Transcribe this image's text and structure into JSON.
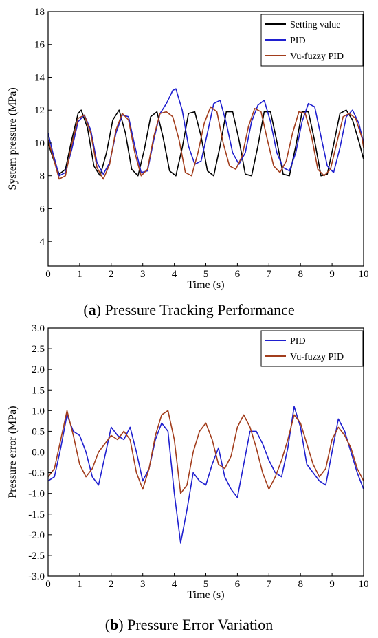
{
  "chart_data": [
    {
      "type": "line",
      "caption_letter": "a",
      "caption_text": ") Pressure Tracking Performance",
      "caption_open": "(",
      "xlabel": "Time (s)",
      "ylabel": "System pressure (MPa)",
      "xlim": [
        0,
        10
      ],
      "ylim": [
        2.5,
        18
      ],
      "xticks": [
        "0",
        "1",
        "2",
        "3",
        "4",
        "5",
        "6",
        "7",
        "8",
        "9",
        "10"
      ],
      "yticks": [
        "4",
        "6",
        "8",
        "10",
        "12",
        "14",
        "16",
        "18"
      ],
      "legend_position": "top-right",
      "grid": false,
      "series": [
        {
          "name": "Setting value",
          "color": "#000000",
          "x": [
            0,
            0.15,
            0.35,
            0.55,
            0.75,
            0.95,
            1.05,
            1.25,
            1.45,
            1.65,
            1.85,
            2.05,
            2.25,
            2.45,
            2.65,
            2.85,
            3.05,
            3.25,
            3.45,
            3.65,
            3.85,
            4.05,
            4.25,
            4.45,
            4.65,
            4.85,
            5.05,
            5.25,
            5.45,
            5.65,
            5.85,
            6.05,
            6.25,
            6.45,
            6.65,
            6.85,
            7.05,
            7.25,
            7.45,
            7.65,
            7.85,
            8.05,
            8.25,
            8.45,
            8.65,
            8.85,
            9.05,
            9.25,
            9.45,
            9.65,
            9.85,
            10
          ],
          "values": [
            10.0,
            9.1,
            8.1,
            8.4,
            10.2,
            11.8,
            12.0,
            10.9,
            8.6,
            8.0,
            9.4,
            11.4,
            12.0,
            10.6,
            8.4,
            8.0,
            9.6,
            11.6,
            11.9,
            10.3,
            8.3,
            8.0,
            9.7,
            11.8,
            11.9,
            10.4,
            8.3,
            8.0,
            9.8,
            11.9,
            11.9,
            10.2,
            8.1,
            8.0,
            9.8,
            11.9,
            11.9,
            10.1,
            8.1,
            8.0,
            9.8,
            11.9,
            11.9,
            10.1,
            8.0,
            8.1,
            9.9,
            11.8,
            12.0,
            11.4,
            10.1,
            9.0
          ]
        },
        {
          "name": "PID",
          "color": "#1f1fcf",
          "x": [
            0,
            0.15,
            0.35,
            0.55,
            0.75,
            0.95,
            1.15,
            1.35,
            1.55,
            1.75,
            1.95,
            2.15,
            2.35,
            2.55,
            2.75,
            2.95,
            3.15,
            3.35,
            3.55,
            3.75,
            3.95,
            4.05,
            4.25,
            4.45,
            4.65,
            4.85,
            5.05,
            5.25,
            5.45,
            5.65,
            5.85,
            6.05,
            6.25,
            6.45,
            6.65,
            6.85,
            7.05,
            7.25,
            7.45,
            7.65,
            7.85,
            8.05,
            8.25,
            8.45,
            8.65,
            8.85,
            9.05,
            9.25,
            9.45,
            9.65,
            9.85,
            10
          ],
          "values": [
            10.6,
            9.4,
            8.0,
            8.2,
            9.6,
            11.3,
            11.7,
            10.8,
            8.8,
            8.1,
            8.8,
            10.6,
            11.7,
            11.6,
            9.8,
            8.2,
            8.3,
            10.2,
            11.8,
            12.4,
            13.2,
            13.3,
            12.0,
            9.8,
            8.7,
            8.9,
            10.6,
            12.4,
            12.6,
            11.2,
            9.4,
            8.7,
            9.4,
            11.3,
            12.3,
            12.6,
            11.3,
            9.4,
            8.5,
            8.3,
            9.4,
            11.3,
            12.4,
            12.2,
            10.4,
            8.6,
            8.2,
            9.7,
            11.6,
            12.0,
            11.2,
            10.0
          ]
        },
        {
          "name": "Vu-fuzzy PID",
          "color": "#a23d1c",
          "x": [
            0,
            0.15,
            0.35,
            0.55,
            0.75,
            0.95,
            1.15,
            1.35,
            1.55,
            1.75,
            1.95,
            2.15,
            2.35,
            2.55,
            2.75,
            2.95,
            3.15,
            3.35,
            3.55,
            3.75,
            3.95,
            4.15,
            4.35,
            4.55,
            4.75,
            4.95,
            5.15,
            5.35,
            5.55,
            5.75,
            5.95,
            6.15,
            6.35,
            6.55,
            6.75,
            6.95,
            7.15,
            7.35,
            7.55,
            7.75,
            7.95,
            8.15,
            8.35,
            8.55,
            8.75,
            8.95,
            9.15,
            9.35,
            9.55,
            9.75,
            9.95,
            10
          ],
          "values": [
            10.2,
            9.2,
            7.8,
            8.0,
            9.9,
            11.5,
            11.7,
            10.6,
            8.5,
            7.8,
            8.7,
            10.8,
            11.8,
            11.4,
            9.4,
            8.0,
            8.4,
            10.4,
            11.8,
            11.9,
            11.6,
            10.2,
            8.2,
            8.0,
            9.4,
            11.2,
            12.2,
            11.9,
            10.0,
            8.6,
            8.4,
            9.2,
            11.0,
            12.1,
            11.9,
            10.2,
            8.6,
            8.2,
            8.9,
            10.6,
            11.9,
            11.8,
            10.4,
            8.4,
            8.0,
            8.4,
            10.0,
            11.6,
            11.8,
            11.5,
            10.3,
            9.7
          ]
        }
      ]
    },
    {
      "type": "line",
      "caption_letter": "b",
      "caption_text": ") Pressure Error Variation",
      "caption_open": "(",
      "xlabel": "Time (s)",
      "ylabel": "Pressure error (MPa)",
      "xlim": [
        0,
        10
      ],
      "ylim": [
        -3.0,
        3.0
      ],
      "xticks": [
        "0",
        "1",
        "2",
        "3",
        "4",
        "5",
        "6",
        "7",
        "8",
        "9",
        "10"
      ],
      "yticks": [
        "-3.0",
        "-2.5",
        "-2.0",
        "-1.5",
        "-1.0",
        "-0.5",
        "0.0",
        "0.5",
        "1.0",
        "1.5",
        "2.0",
        "2.5",
        "3.0"
      ],
      "legend_position": "top-right",
      "grid": false,
      "series": [
        {
          "name": "PID",
          "color": "#1f1fcf",
          "x": [
            0,
            0.2,
            0.4,
            0.6,
            0.8,
            1.0,
            1.2,
            1.4,
            1.6,
            1.8,
            2.0,
            2.2,
            2.4,
            2.6,
            2.8,
            3.0,
            3.2,
            3.4,
            3.6,
            3.8,
            4.0,
            4.2,
            4.4,
            4.6,
            4.8,
            5.0,
            5.2,
            5.4,
            5.6,
            5.8,
            6.0,
            6.2,
            6.4,
            6.6,
            6.8,
            7.0,
            7.2,
            7.4,
            7.6,
            7.8,
            8.0,
            8.2,
            8.4,
            8.6,
            8.8,
            9.0,
            9.2,
            9.4,
            9.6,
            9.8,
            10.0
          ],
          "values": [
            -0.7,
            -0.6,
            0.1,
            0.9,
            0.5,
            0.4,
            0.0,
            -0.6,
            -0.8,
            -0.1,
            0.6,
            0.4,
            0.3,
            0.6,
            0.0,
            -0.7,
            -0.4,
            0.3,
            0.7,
            0.5,
            -1.0,
            -2.2,
            -1.4,
            -0.5,
            -0.7,
            -0.8,
            -0.3,
            0.1,
            -0.6,
            -0.9,
            -1.1,
            -0.3,
            0.5,
            0.5,
            0.2,
            -0.2,
            -0.5,
            -0.6,
            0.1,
            1.1,
            0.6,
            -0.3,
            -0.5,
            -0.7,
            -0.8,
            0.0,
            0.8,
            0.5,
            0.0,
            -0.5,
            -0.9
          ]
        },
        {
          "name": "Vu-fuzzy PID",
          "color": "#a23d1c",
          "x": [
            0,
            0.2,
            0.4,
            0.6,
            0.8,
            1.0,
            1.2,
            1.4,
            1.6,
            1.8,
            2.0,
            2.2,
            2.4,
            2.6,
            2.8,
            3.0,
            3.2,
            3.4,
            3.6,
            3.8,
            4.0,
            4.2,
            4.4,
            4.6,
            4.8,
            5.0,
            5.2,
            5.4,
            5.6,
            5.8,
            6.0,
            6.2,
            6.4,
            6.6,
            6.8,
            7.0,
            7.2,
            7.4,
            7.6,
            7.8,
            8.0,
            8.2,
            8.4,
            8.6,
            8.8,
            9.0,
            9.2,
            9.4,
            9.6,
            9.8,
            10.0
          ],
          "values": [
            -0.6,
            -0.4,
            0.3,
            1.0,
            0.4,
            -0.3,
            -0.6,
            -0.4,
            0.0,
            0.2,
            0.4,
            0.3,
            0.5,
            0.3,
            -0.5,
            -0.9,
            -0.4,
            0.4,
            0.9,
            1.0,
            0.3,
            -1.0,
            -0.8,
            0.0,
            0.5,
            0.7,
            0.3,
            -0.3,
            -0.4,
            -0.1,
            0.6,
            0.9,
            0.6,
            0.1,
            -0.5,
            -0.9,
            -0.6,
            -0.2,
            0.3,
            0.9,
            0.7,
            0.2,
            -0.3,
            -0.6,
            -0.4,
            0.3,
            0.6,
            0.4,
            0.1,
            -0.4,
            -0.7
          ]
        }
      ]
    }
  ]
}
